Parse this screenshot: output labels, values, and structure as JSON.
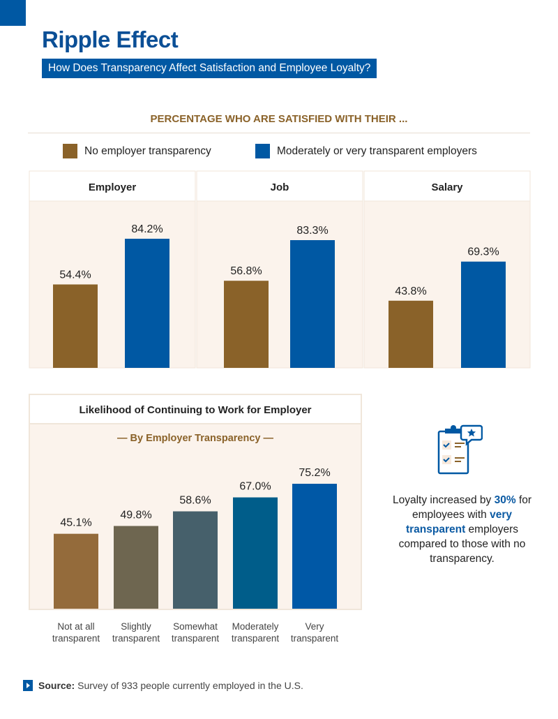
{
  "header": {
    "title": "Ripple Effect",
    "subtitle": "How Does Transparency Affect Satisfaction and Employee Loyalty?"
  },
  "colors": {
    "brand_blue": "#0058a3",
    "gold": "#8a6229",
    "panel_bg": "#fbf3ec"
  },
  "chart_data": [
    {
      "type": "bar",
      "title": "PERCENTAGE WHO ARE SATISFIED WITH THEIR ...",
      "legend_position": "top",
      "grid": false,
      "ylim": [
        0,
        100
      ],
      "categories": [
        "Employer",
        "Job",
        "Salary"
      ],
      "series": [
        {
          "name": "No employer transparency",
          "color": "#8a6229",
          "values": [
            54.4,
            56.8,
            43.8
          ],
          "labels": [
            "54.4%",
            "56.8%",
            "43.8%"
          ]
        },
        {
          "name": "Moderately or very transparent employers",
          "color": "#0058a3",
          "values": [
            84.2,
            83.3,
            69.3
          ],
          "labels": [
            "84.2%",
            "83.3%",
            "69.3%"
          ]
        }
      ]
    },
    {
      "type": "bar",
      "title": "Likelihood of Continuing to Work for Employer",
      "subtitle": "— By Employer Transparency —",
      "grid": false,
      "ylim": [
        0,
        100
      ],
      "categories": [
        [
          "Not at all",
          "transparent"
        ],
        [
          "Slightly",
          "transparent"
        ],
        [
          "Somewhat",
          "transparent"
        ],
        [
          "Moderately",
          "transparent"
        ],
        [
          "Very",
          "transparent"
        ]
      ],
      "values": [
        45.1,
        49.8,
        58.6,
        67.0,
        75.2
      ],
      "labels": [
        "45.1%",
        "49.8%",
        "58.6%",
        "67.0%",
        "75.2%"
      ],
      "colors": [
        "#946b3b",
        "#6e6650",
        "#46606b",
        "#005d8a",
        "#0058a6"
      ]
    }
  ],
  "callout": {
    "icon": "clipboard-checklist-star-icon",
    "pre": "Loyalty increased by",
    "highlight1": "30%",
    "mid": "for employees with",
    "highlight2": "very transparent",
    "post": "employers compared to those with no transparency."
  },
  "source": {
    "label": "Source:",
    "text": "Survey of 933 people currently employed in the U.S."
  }
}
